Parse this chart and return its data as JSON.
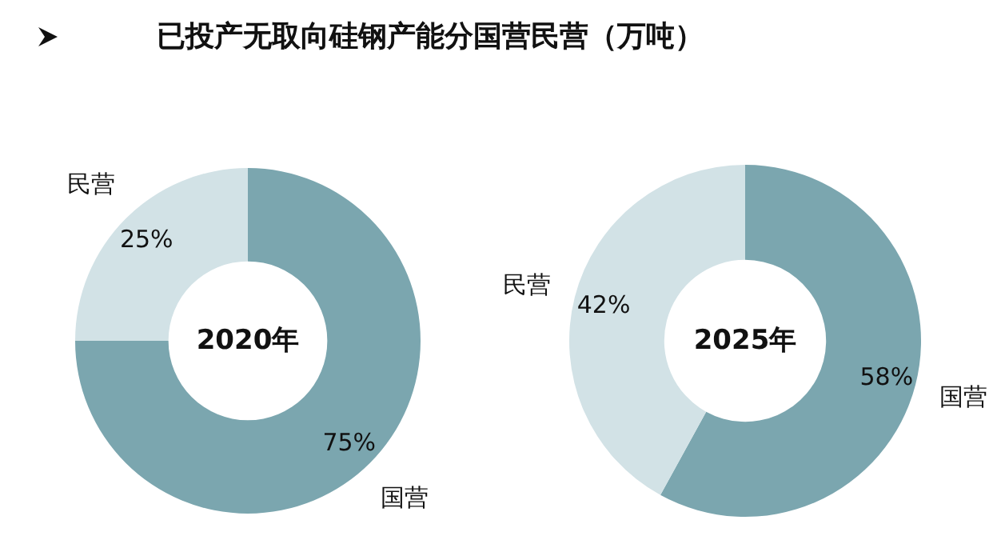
{
  "chart_data": [
    {
      "type": "donut",
      "title": "已投产无取向硅钢产能分国营民营（万吨）",
      "annotations": [
        "2020年"
      ],
      "categories": [
        "国营",
        "民营"
      ],
      "values": [
        75,
        25
      ],
      "value_labels": [
        "75%",
        "25%"
      ],
      "colors": [
        "#7ba6af",
        "#d2e2e6"
      ]
    },
    {
      "type": "donut",
      "annotations": [
        "2025年"
      ],
      "categories": [
        "国营",
        "民营"
      ],
      "values": [
        58,
        42
      ],
      "value_labels": [
        "58%",
        "42%"
      ],
      "colors": [
        "#7ba6af",
        "#d2e2e6"
      ]
    }
  ]
}
